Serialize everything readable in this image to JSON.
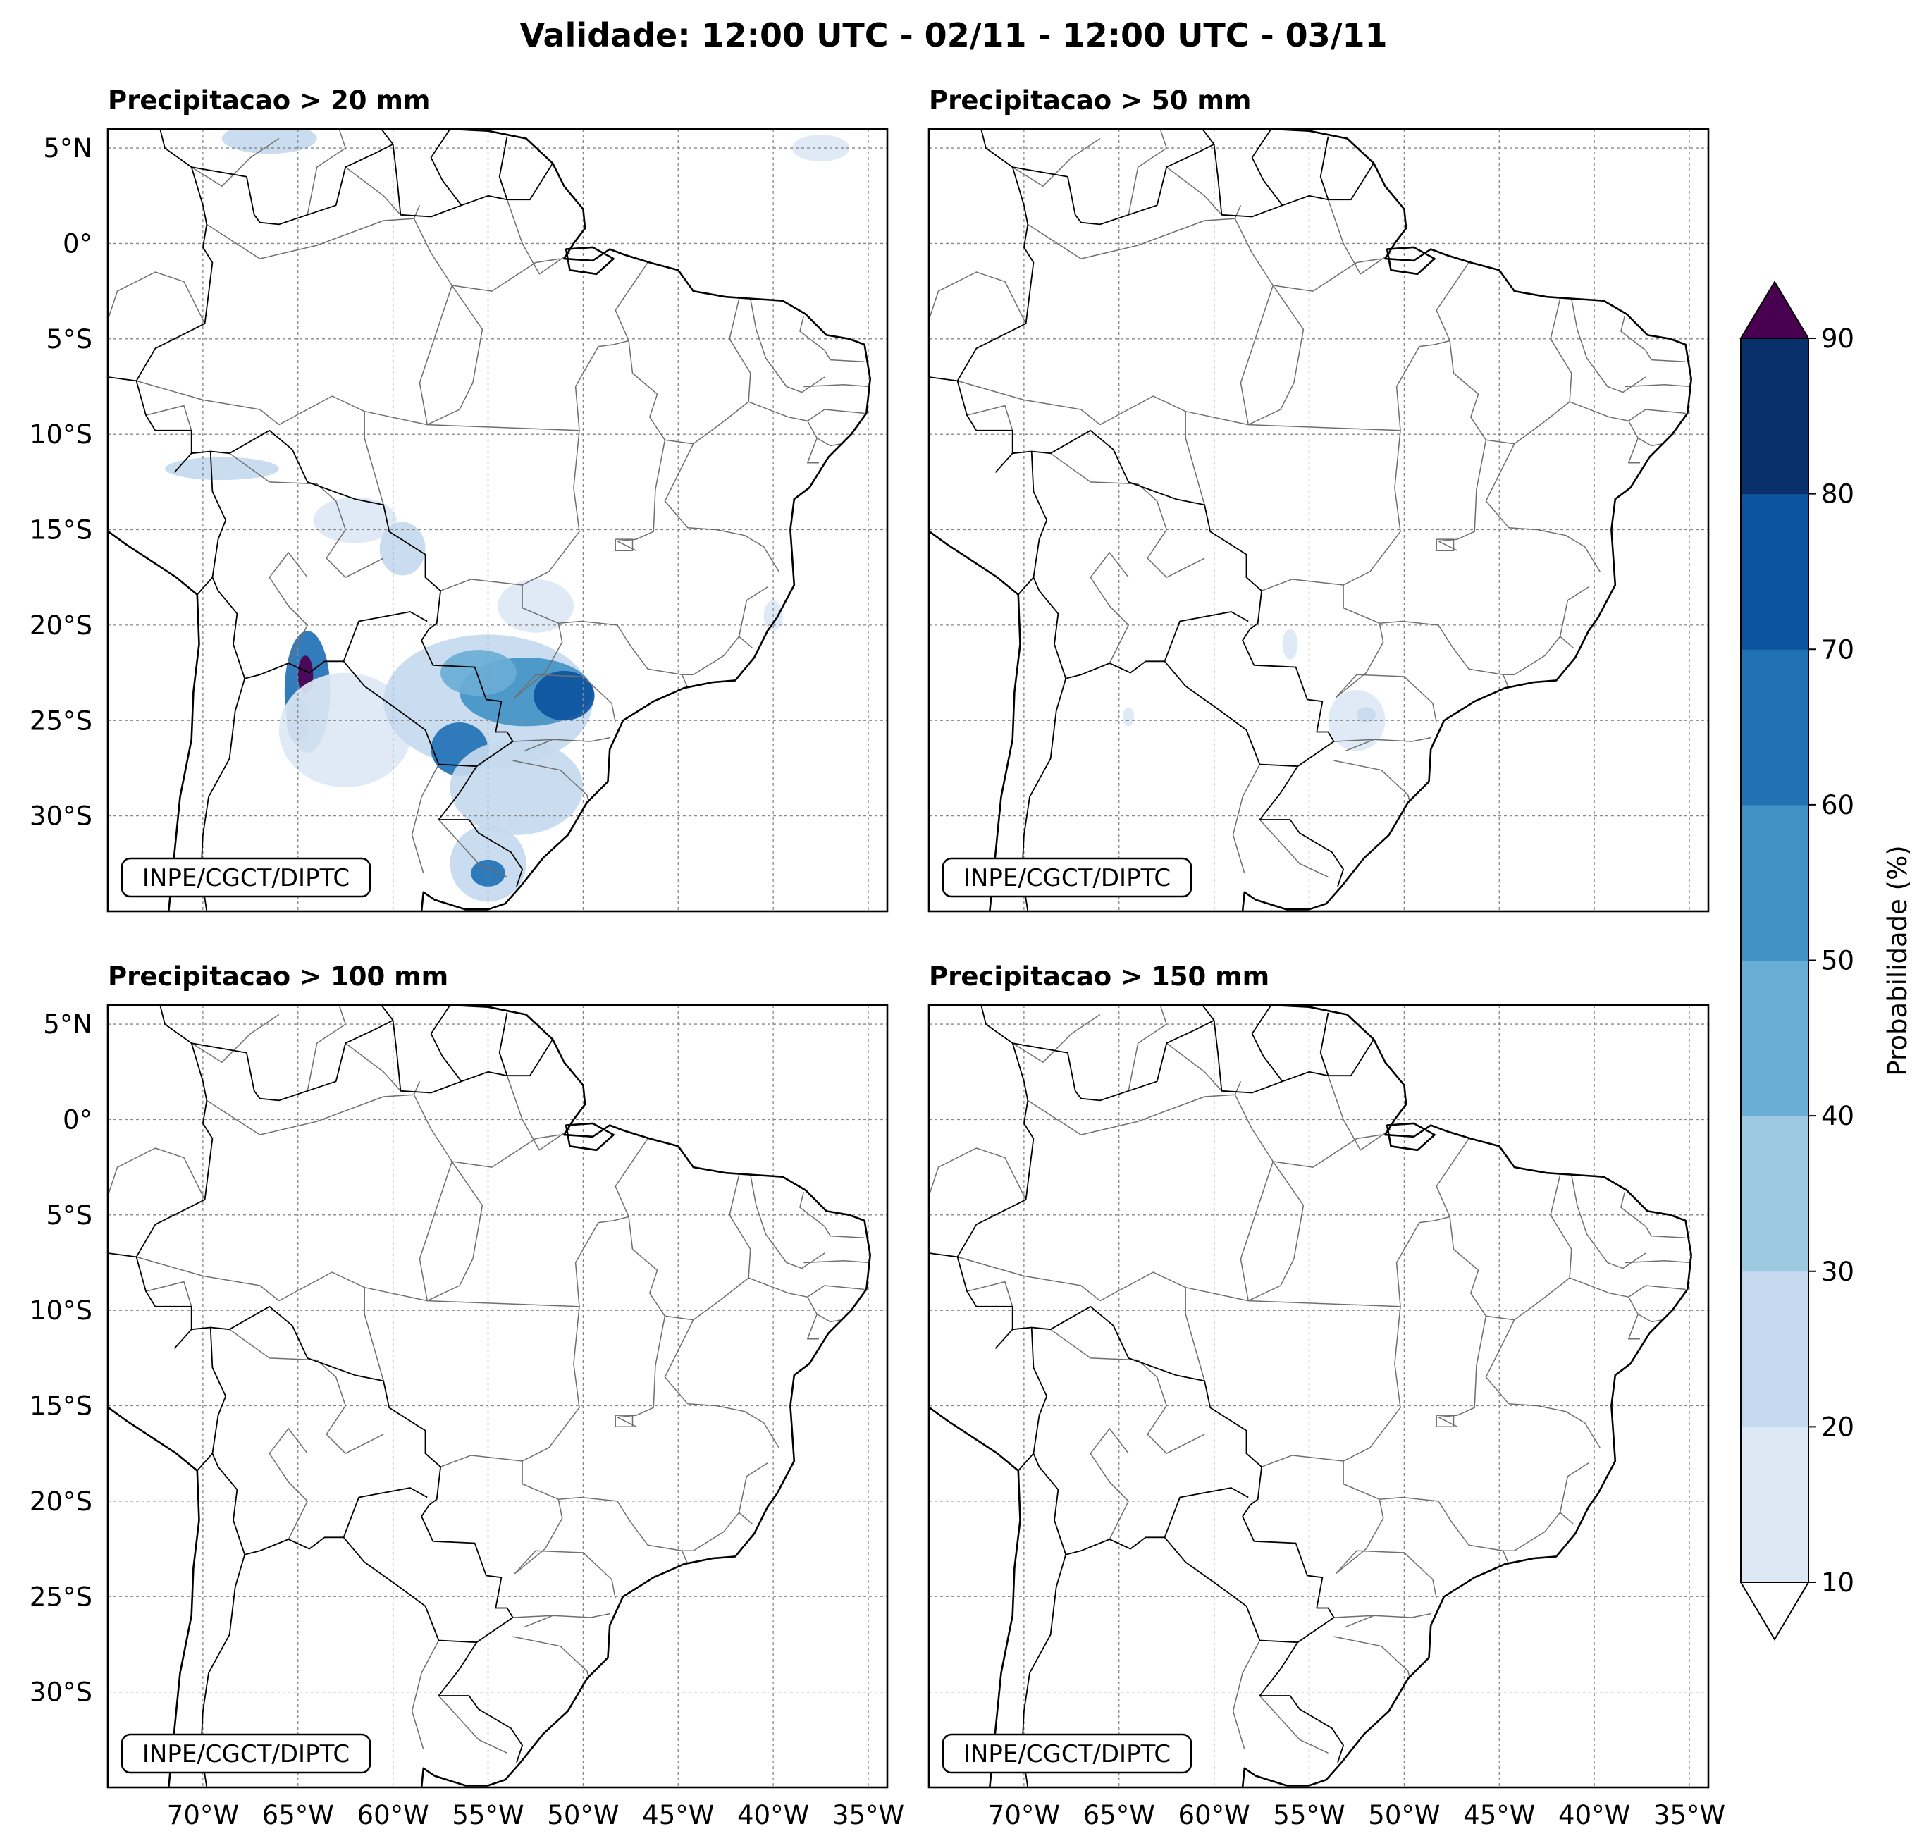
{
  "title": "Validade: 12:00 UTC - 02/11 - 12:00 UTC - 03/11",
  "panels": [
    {
      "title": "Precipitacao > 20 mm",
      "credit": "INPE/CGCT/DIPTC",
      "max_probability": 90,
      "blobs": [
        {
          "lon": -64.5,
          "lat": -23.5,
          "rlon": 1.2,
          "rlat": 3.2,
          "p": 60
        },
        {
          "lon": -64.6,
          "lat": -22.6,
          "rlon": 0.4,
          "rlat": 1.0,
          "p": 90
        },
        {
          "lon": -65.0,
          "lat": -25.0,
          "rlon": 0.6,
          "rlat": 1.2,
          "p": 70
        },
        {
          "lon": -62.5,
          "lat": -25.5,
          "rlon": 3.5,
          "rlat": 3.0,
          "p": 10
        },
        {
          "lon": -55.0,
          "lat": -24.0,
          "rlon": 5.5,
          "rlat": 3.5,
          "p": 20
        },
        {
          "lon": -53.0,
          "lat": -23.5,
          "rlon": 3.5,
          "rlat": 1.8,
          "p": 50
        },
        {
          "lon": -51.0,
          "lat": -23.7,
          "rlon": 1.6,
          "rlat": 1.3,
          "p": 70
        },
        {
          "lon": -55.5,
          "lat": -22.5,
          "rlon": 2.0,
          "rlat": 1.2,
          "p": 40
        },
        {
          "lon": -56.5,
          "lat": -26.5,
          "rlon": 1.5,
          "rlat": 1.4,
          "p": 60
        },
        {
          "lon": -53.5,
          "lat": -28.5,
          "rlon": 3.5,
          "rlat": 2.5,
          "p": 20
        },
        {
          "lon": -55.0,
          "lat": -32.5,
          "rlon": 2.0,
          "rlat": 2.0,
          "p": 20
        },
        {
          "lon": -55.0,
          "lat": -33.0,
          "rlon": 0.9,
          "rlat": 0.7,
          "p": 60
        },
        {
          "lon": -62.0,
          "lat": -14.5,
          "rlon": 2.2,
          "rlat": 1.2,
          "p": 10
        },
        {
          "lon": -59.5,
          "lat": -16.0,
          "rlon": 1.2,
          "rlat": 1.4,
          "p": 20
        },
        {
          "lon": -69.0,
          "lat": -11.8,
          "rlon": 3.0,
          "rlat": 0.6,
          "p": 20
        },
        {
          "lon": -52.5,
          "lat": -19.0,
          "rlon": 2.0,
          "rlat": 1.4,
          "p": 10
        },
        {
          "lon": -66.5,
          "lat": 5.5,
          "rlon": 2.5,
          "rlat": 0.8,
          "p": 20
        },
        {
          "lon": -40.0,
          "lat": -19.5,
          "rlon": 0.5,
          "rlat": 0.8,
          "p": 10
        },
        {
          "lon": -37.5,
          "lat": 5.0,
          "rlon": 1.5,
          "rlat": 0.7,
          "p": 10
        }
      ]
    },
    {
      "title": "Precipitacao > 50 mm",
      "credit": "INPE/CGCT/DIPTC",
      "max_probability": 20,
      "blobs": [
        {
          "lon": -52.5,
          "lat": -25.0,
          "rlon": 1.5,
          "rlat": 1.6,
          "p": 10
        },
        {
          "lon": -52.0,
          "lat": -24.7,
          "rlon": 0.5,
          "rlat": 0.4,
          "p": 20
        },
        {
          "lon": -56.0,
          "lat": -21.0,
          "rlon": 0.4,
          "rlat": 0.8,
          "p": 10
        },
        {
          "lon": -64.5,
          "lat": -24.8,
          "rlon": 0.3,
          "rlat": 0.5,
          "p": 10
        }
      ]
    },
    {
      "title": "Precipitacao > 100 mm",
      "credit": "INPE/CGCT/DIPTC",
      "max_probability": 0,
      "blobs": []
    },
    {
      "title": "Precipitacao > 150 mm",
      "credit": "INPE/CGCT/DIPTC",
      "max_probability": 0,
      "blobs": []
    }
  ],
  "map_extent": {
    "lon_min": -75,
    "lon_max": -34,
    "lat_min": -35,
    "lat_max": 6
  },
  "y_ticks": [
    {
      "lat": 5,
      "label": "5°N"
    },
    {
      "lat": 0,
      "label": "0°"
    },
    {
      "lat": -5,
      "label": "5°S"
    },
    {
      "lat": -10,
      "label": "10°S"
    },
    {
      "lat": -15,
      "label": "15°S"
    },
    {
      "lat": -20,
      "label": "20°S"
    },
    {
      "lat": -25,
      "label": "25°S"
    },
    {
      "lat": -30,
      "label": "30°S"
    }
  ],
  "x_ticks": [
    {
      "lon": -70,
      "label": "70°W"
    },
    {
      "lon": -65,
      "label": "65°W"
    },
    {
      "lon": -60,
      "label": "60°W"
    },
    {
      "lon": -55,
      "label": "55°W"
    },
    {
      "lon": -50,
      "label": "50°W"
    },
    {
      "lon": -45,
      "label": "45°W"
    },
    {
      "lon": -40,
      "label": "40°W"
    },
    {
      "lon": -35,
      "label": "35°W"
    }
  ],
  "colorbar": {
    "label": "Probabilidade (%)",
    "ticks": [
      10,
      20,
      30,
      40,
      50,
      60,
      70,
      80,
      90
    ],
    "colors": [
      "#dde8f5",
      "#c5d9ee",
      "#9ecae1",
      "#6aaed6",
      "#4292c6",
      "#2171b5",
      "#0d54a0",
      "#08306b"
    ],
    "over_color": "#4a0050",
    "under_color": "#ffffff"
  },
  "colors": {
    "coast": "#000000",
    "state": "#6f6f6f",
    "grid": "#888888"
  }
}
